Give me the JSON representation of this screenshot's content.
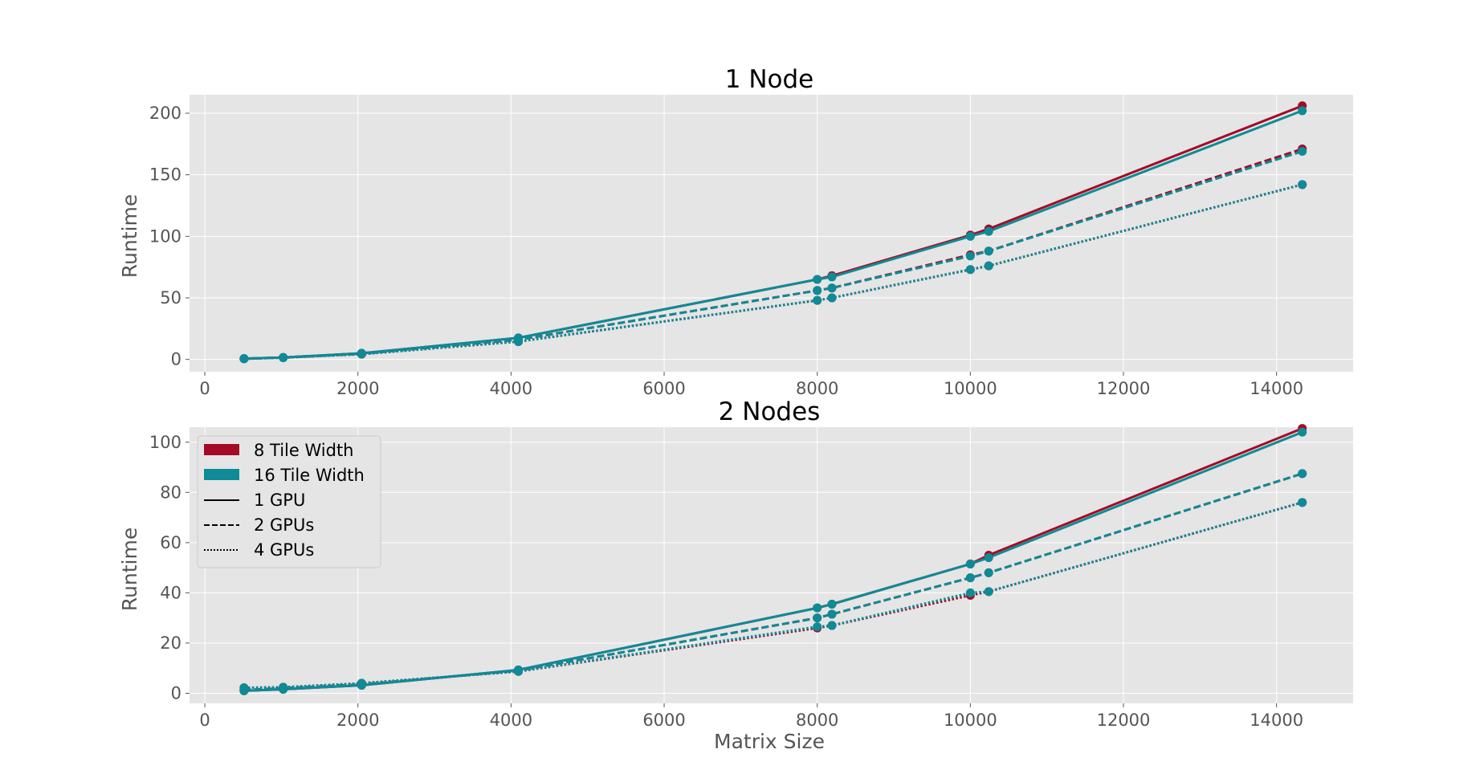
{
  "colors": {
    "tile8": "#A50B27",
    "tile16": "#0E8B96",
    "panel_bg": "#E5E5E5",
    "grid": "#FFFFFF"
  },
  "legend": {
    "placement": "upper-left",
    "entries": [
      {
        "label": "8 Tile Width",
        "kind": "patch",
        "color": "#A50B27"
      },
      {
        "label": "16 Tile Width",
        "kind": "patch",
        "color": "#0E8B96"
      },
      {
        "label": "1 GPU",
        "kind": "line",
        "style": "solid"
      },
      {
        "label": "2 GPUs",
        "kind": "line",
        "style": "dashed"
      },
      {
        "label": "4 GPUs",
        "kind": "line",
        "style": "dotted"
      }
    ]
  },
  "chart_data": [
    {
      "type": "line",
      "title": "1 Node",
      "xlabel": "",
      "ylabel": "Runtime",
      "xlim": [
        -200,
        15000
      ],
      "ylim": [
        -10,
        215
      ],
      "xticks": [
        0,
        2000,
        4000,
        6000,
        8000,
        10000,
        12000,
        14000
      ],
      "yticks": [
        0,
        50,
        100,
        150,
        200
      ],
      "grid": true,
      "x": [
        512,
        1024,
        2048,
        4096,
        8000,
        8192,
        10000,
        10240,
        14336
      ],
      "series": [
        {
          "tile_width": 8,
          "gpus": 1,
          "style": "solid",
          "color": "#A50B27",
          "values": [
            0.7,
            1.6,
            5.0,
            17.5,
            65,
            68,
            101,
            106,
            206
          ]
        },
        {
          "tile_width": 8,
          "gpus": 2,
          "style": "dashed",
          "color": "#A50B27",
          "values": [
            0.6,
            1.5,
            4.6,
            16.0,
            56,
            58,
            85,
            88,
            171
          ]
        },
        {
          "tile_width": 8,
          "gpus": 4,
          "style": "dotted",
          "color": "#A50B27",
          "values": [
            0.5,
            1.4,
            4.3,
            14.5,
            48,
            50,
            73,
            76,
            142
          ]
        },
        {
          "tile_width": 16,
          "gpus": 1,
          "style": "solid",
          "color": "#0E8B96",
          "values": [
            0.7,
            1.6,
            5.0,
            17.5,
            65,
            67,
            100,
            104,
            202
          ]
        },
        {
          "tile_width": 16,
          "gpus": 2,
          "style": "dashed",
          "color": "#0E8B96",
          "values": [
            0.6,
            1.5,
            4.6,
            16.0,
            56,
            58,
            84,
            88,
            169
          ]
        },
        {
          "tile_width": 16,
          "gpus": 4,
          "style": "dotted",
          "color": "#0E8B96",
          "values": [
            0.5,
            1.4,
            4.3,
            14.5,
            48,
            50,
            73,
            76,
            142
          ]
        }
      ]
    },
    {
      "type": "line",
      "title": "2 Nodes",
      "xlabel": "Matrix Size",
      "ylabel": "Runtime",
      "xlim": [
        -200,
        15000
      ],
      "ylim": [
        -4,
        106
      ],
      "xticks": [
        0,
        2000,
        4000,
        6000,
        8000,
        10000,
        12000,
        14000
      ],
      "yticks": [
        0,
        20,
        40,
        60,
        80,
        100
      ],
      "grid": true,
      "x": [
        512,
        1024,
        2048,
        4096,
        8000,
        8192,
        10000,
        10240,
        14336
      ],
      "series": [
        {
          "tile_width": 8,
          "gpus": 1,
          "style": "solid",
          "color": "#A50B27",
          "values": [
            1.0,
            1.6,
            3.2,
            9.3,
            34.0,
            35.5,
            51.5,
            55.0,
            105.5
          ]
        },
        {
          "tile_width": 8,
          "gpus": 2,
          "style": "dashed",
          "color": "#A50B27",
          "values": [
            1.3,
            2.0,
            3.5,
            9.0,
            30.0,
            31.5,
            46.0,
            48.0,
            87.5
          ]
        },
        {
          "tile_width": 8,
          "gpus": 4,
          "style": "dotted",
          "color": "#A50B27",
          "values": [
            2.2,
            2.4,
            4.0,
            8.7,
            26.0,
            27.0,
            39.0,
            40.5,
            76.0
          ]
        },
        {
          "tile_width": 16,
          "gpus": 1,
          "style": "solid",
          "color": "#0E8B96",
          "values": [
            1.0,
            1.6,
            3.2,
            9.3,
            34.0,
            35.5,
            51.5,
            54.0,
            104.0
          ]
        },
        {
          "tile_width": 16,
          "gpus": 2,
          "style": "dashed",
          "color": "#0E8B96",
          "values": [
            1.3,
            2.0,
            3.5,
            9.0,
            30.0,
            31.5,
            46.0,
            48.0,
            87.5
          ]
        },
        {
          "tile_width": 16,
          "gpus": 4,
          "style": "dotted",
          "color": "#0E8B96",
          "values": [
            2.2,
            2.4,
            4.0,
            8.7,
            26.5,
            27.0,
            40.0,
            40.5,
            76.0
          ]
        }
      ]
    }
  ]
}
